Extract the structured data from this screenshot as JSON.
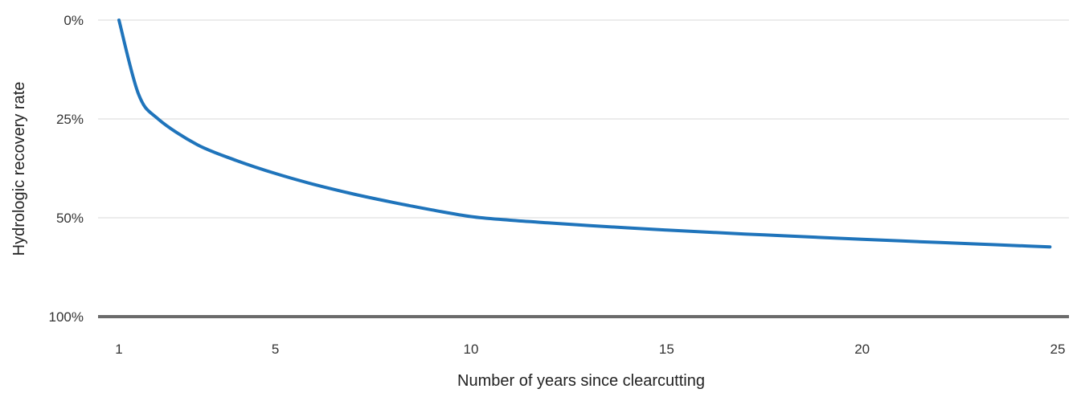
{
  "chart_data": {
    "type": "line",
    "title": "",
    "xlabel": "Number of years since clearcutting",
    "ylabel": "Hydrologic recovery rate",
    "xlim": [
      1,
      25
    ],
    "ylim": [
      0,
      100
    ],
    "y_inverted": true,
    "grid": true,
    "x_ticks": [
      1,
      5,
      10,
      15,
      20,
      25
    ],
    "y_ticks": [
      {
        "value": 0,
        "label": "0%"
      },
      {
        "value": 25,
        "label": "25%"
      },
      {
        "value": 50,
        "label": "50%"
      },
      {
        "value": 100,
        "label": "100%"
      }
    ],
    "series": [
      {
        "color": "#1f74bb",
        "x": [
          1,
          1.5,
          2,
          3,
          4,
          5,
          6,
          7,
          8,
          9,
          10,
          11,
          12,
          13,
          14,
          15,
          16,
          17,
          18,
          19,
          20,
          21,
          22,
          23,
          24,
          24.8
        ],
        "y": [
          0,
          18.7,
          25.0,
          31.5,
          35.5,
          38.8,
          41.6,
          44.0,
          46.1,
          48.0,
          49.7,
          51.2,
          52.6,
          53.9,
          55.1,
          56.2,
          57.2,
          58.2,
          59.1,
          60.0,
          60.9,
          61.7,
          62.5,
          63.3,
          64.1,
          64.7
        ]
      }
    ],
    "colors": {
      "grid": "#d9d9d9",
      "baseline": "#6b6b6b",
      "text": "#333333"
    }
  }
}
